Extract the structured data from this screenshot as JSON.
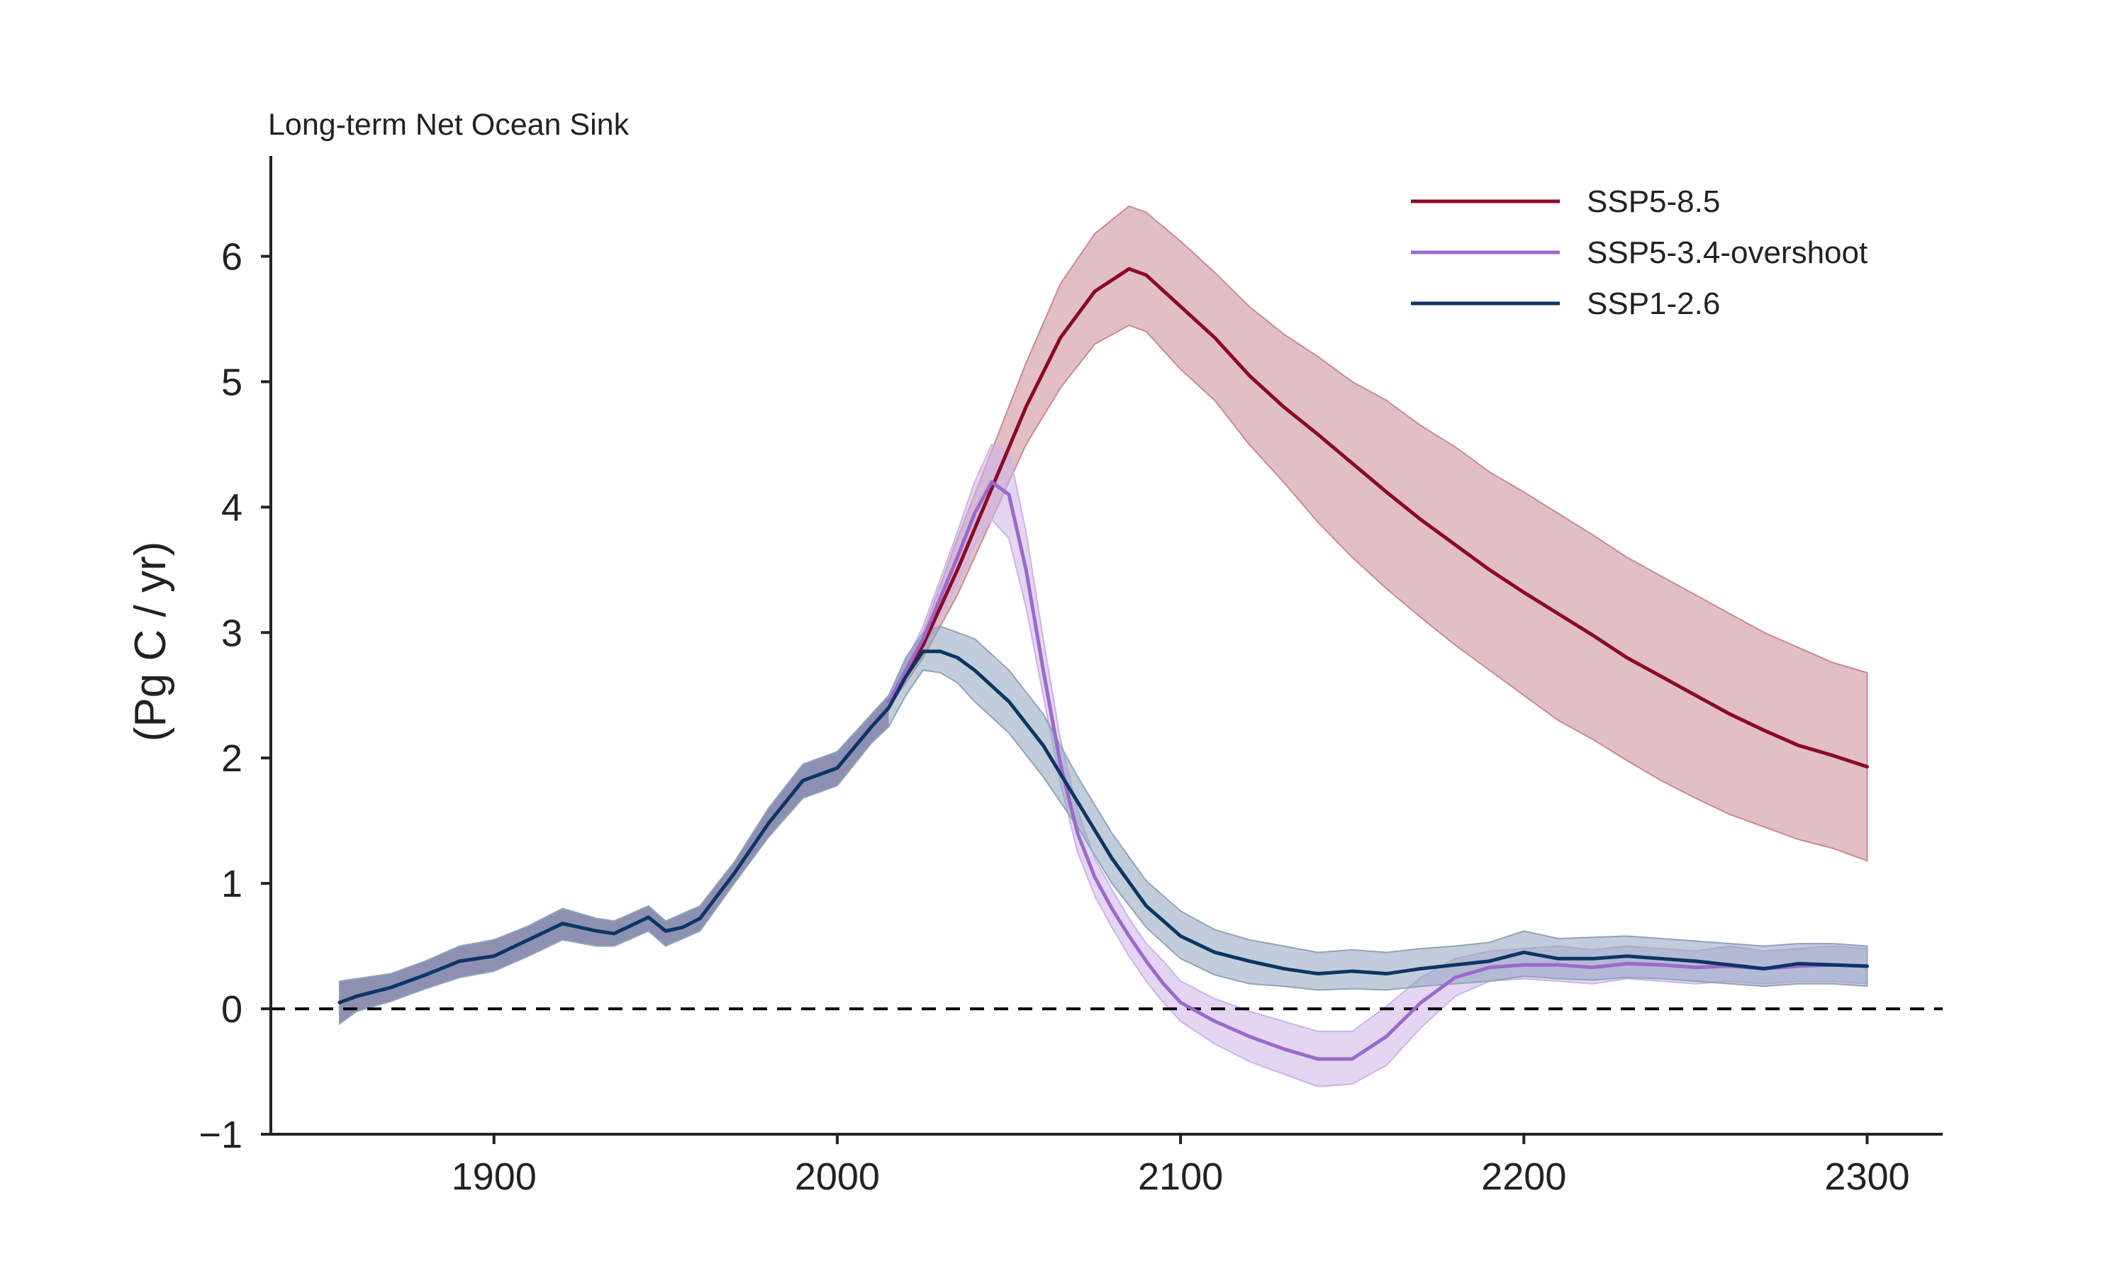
{
  "chart_data": {
    "type": "line",
    "title": "Long-term Net Ocean Sink",
    "xlabel": "",
    "ylabel": "(Pg C / yr)",
    "xlim": [
      1835,
      2322
    ],
    "ylim": [
      -1,
      6.8
    ],
    "xticks": [
      1900,
      2000,
      2100,
      2200,
      2300
    ],
    "yticks": [
      -1,
      0,
      1,
      2,
      3,
      4,
      5,
      6
    ],
    "ytick_labels": [
      "−1",
      "0",
      "1",
      "2",
      "3",
      "4",
      "5",
      "6"
    ],
    "zero_line": {
      "y": 0,
      "style": "dashed",
      "color": "#000000"
    },
    "legend_position": "upper-right",
    "grid": false,
    "historical_band": {
      "color": "#5b3f7d",
      "x": [
        1855,
        1860,
        1870,
        1880,
        1890,
        1900,
        1910,
        1920,
        1930,
        1935,
        1945,
        1950,
        1955,
        1960,
        1970,
        1980,
        1990,
        2000,
        2010,
        2015
      ],
      "lower": [
        -0.12,
        -0.02,
        0.06,
        0.16,
        0.25,
        0.3,
        0.42,
        0.55,
        0.5,
        0.5,
        0.62,
        0.5,
        0.56,
        0.62,
        1.0,
        1.37,
        1.68,
        1.78,
        2.12,
        2.25
      ],
      "upper": [
        0.22,
        0.24,
        0.28,
        0.38,
        0.5,
        0.55,
        0.66,
        0.8,
        0.72,
        0.7,
        0.82,
        0.7,
        0.76,
        0.82,
        1.17,
        1.6,
        1.95,
        2.05,
        2.35,
        2.5
      ]
    },
    "series": [
      {
        "name": "SSP5-8.5",
        "color": "#8b0a24",
        "band_color": "#c88a96",
        "x": [
          2015,
          2025,
          2035,
          2045,
          2055,
          2065,
          2075,
          2085,
          2090,
          2100,
          2110,
          2120,
          2130,
          2140,
          2150,
          2160,
          2170,
          2180,
          2190,
          2200,
          2210,
          2220,
          2230,
          2240,
          2250,
          2260,
          2270,
          2280,
          2290,
          2300
        ],
        "values": [
          2.45,
          2.9,
          3.5,
          4.15,
          4.8,
          5.35,
          5.72,
          5.9,
          5.85,
          5.6,
          5.35,
          5.05,
          4.8,
          4.58,
          4.35,
          4.12,
          3.9,
          3.7,
          3.5,
          3.32,
          3.15,
          2.98,
          2.8,
          2.65,
          2.5,
          2.35,
          2.22,
          2.1,
          2.02,
          1.93
        ],
        "lower": [
          2.4,
          2.8,
          3.3,
          3.9,
          4.5,
          4.95,
          5.3,
          5.45,
          5.4,
          5.1,
          4.85,
          4.5,
          4.2,
          3.88,
          3.6,
          3.35,
          3.12,
          2.9,
          2.7,
          2.5,
          2.3,
          2.15,
          1.98,
          1.82,
          1.68,
          1.55,
          1.45,
          1.35,
          1.28,
          1.18
        ],
        "upper": [
          2.5,
          3.0,
          3.75,
          4.45,
          5.15,
          5.78,
          6.18,
          6.4,
          6.35,
          6.12,
          5.87,
          5.6,
          5.38,
          5.2,
          5.0,
          4.85,
          4.65,
          4.48,
          4.28,
          4.12,
          3.95,
          3.78,
          3.6,
          3.45,
          3.3,
          3.15,
          3.0,
          2.88,
          2.76,
          2.68
        ]
      },
      {
        "name": "SSP5-3.4-overshoot",
        "color": "#9a6acb",
        "band_color": "#cdb3e8",
        "x": [
          2015,
          2025,
          2035,
          2040,
          2045,
          2050,
          2055,
          2060,
          2065,
          2070,
          2075,
          2080,
          2085,
          2090,
          2095,
          2100,
          2110,
          2120,
          2130,
          2140,
          2150,
          2160,
          2170,
          2180,
          2190,
          2200,
          2210,
          2220,
          2230,
          2240,
          2250,
          2260,
          2270,
          2280,
          2290,
          2300
        ],
        "values": [
          2.45,
          2.95,
          3.6,
          3.95,
          4.2,
          4.1,
          3.5,
          2.7,
          1.95,
          1.4,
          1.05,
          0.8,
          0.58,
          0.38,
          0.2,
          0.05,
          -0.1,
          -0.22,
          -0.32,
          -0.4,
          -0.4,
          -0.22,
          0.05,
          0.25,
          0.33,
          0.35,
          0.35,
          0.33,
          0.36,
          0.35,
          0.33,
          0.34,
          0.32,
          0.34,
          0.35,
          0.34
        ],
        "lower": [
          2.4,
          2.85,
          3.4,
          3.7,
          3.9,
          3.75,
          3.2,
          2.5,
          1.8,
          1.25,
          0.9,
          0.65,
          0.42,
          0.22,
          0.05,
          -0.1,
          -0.28,
          -0.42,
          -0.52,
          -0.62,
          -0.6,
          -0.45,
          -0.15,
          0.1,
          0.22,
          0.24,
          0.22,
          0.2,
          0.24,
          0.22,
          0.2,
          0.22,
          0.2,
          0.22,
          0.22,
          0.2
        ],
        "upper": [
          2.5,
          3.05,
          3.8,
          4.2,
          4.5,
          4.45,
          3.8,
          2.95,
          2.15,
          1.58,
          1.2,
          0.95,
          0.72,
          0.52,
          0.38,
          0.22,
          0.08,
          -0.02,
          -0.1,
          -0.18,
          -0.18,
          0.02,
          0.25,
          0.4,
          0.46,
          0.48,
          0.5,
          0.47,
          0.5,
          0.48,
          0.46,
          0.5,
          0.46,
          0.48,
          0.5,
          0.48
        ]
      },
      {
        "name": "SSP1-2.6",
        "color": "#0d3564",
        "band_color": "#8ea4bc",
        "x": [
          1855,
          1860,
          1870,
          1880,
          1890,
          1900,
          1910,
          1920,
          1930,
          1935,
          1945,
          1950,
          1955,
          1960,
          1970,
          1980,
          1990,
          2000,
          2010,
          2015,
          2020,
          2025,
          2030,
          2035,
          2040,
          2050,
          2060,
          2070,
          2080,
          2090,
          2100,
          2110,
          2120,
          2130,
          2140,
          2150,
          2160,
          2170,
          2180,
          2190,
          2200,
          2210,
          2220,
          2230,
          2240,
          2250,
          2260,
          2270,
          2280,
          2290,
          2300
        ],
        "values": [
          0.05,
          0.1,
          0.17,
          0.27,
          0.38,
          0.42,
          0.55,
          0.68,
          0.62,
          0.6,
          0.73,
          0.62,
          0.65,
          0.72,
          1.08,
          1.48,
          1.82,
          1.92,
          2.25,
          2.4,
          2.65,
          2.85,
          2.85,
          2.8,
          2.7,
          2.45,
          2.1,
          1.65,
          1.2,
          0.82,
          0.58,
          0.45,
          0.38,
          0.32,
          0.28,
          0.3,
          0.28,
          0.32,
          0.35,
          0.38,
          0.45,
          0.4,
          0.4,
          0.42,
          0.4,
          0.38,
          0.35,
          0.32,
          0.36,
          0.35,
          0.34
        ],
        "lower": [
          -0.12,
          -0.02,
          0.06,
          0.16,
          0.25,
          0.3,
          0.42,
          0.55,
          0.5,
          0.5,
          0.62,
          0.5,
          0.56,
          0.62,
          1.0,
          1.37,
          1.68,
          1.78,
          2.12,
          2.25,
          2.5,
          2.7,
          2.68,
          2.6,
          2.45,
          2.2,
          1.85,
          1.45,
          1.0,
          0.65,
          0.4,
          0.27,
          0.2,
          0.18,
          0.15,
          0.16,
          0.15,
          0.18,
          0.2,
          0.22,
          0.26,
          0.24,
          0.23,
          0.25,
          0.24,
          0.22,
          0.2,
          0.18,
          0.2,
          0.2,
          0.18
        ],
        "upper": [
          0.22,
          0.24,
          0.28,
          0.38,
          0.5,
          0.55,
          0.66,
          0.8,
          0.72,
          0.7,
          0.82,
          0.7,
          0.76,
          0.82,
          1.17,
          1.6,
          1.95,
          2.05,
          2.35,
          2.5,
          2.8,
          3.0,
          3.05,
          3.0,
          2.95,
          2.7,
          2.35,
          1.85,
          1.4,
          1.02,
          0.78,
          0.63,
          0.55,
          0.5,
          0.45,
          0.47,
          0.45,
          0.48,
          0.5,
          0.53,
          0.62,
          0.56,
          0.57,
          0.58,
          0.56,
          0.54,
          0.52,
          0.5,
          0.52,
          0.52,
          0.5
        ]
      }
    ]
  }
}
